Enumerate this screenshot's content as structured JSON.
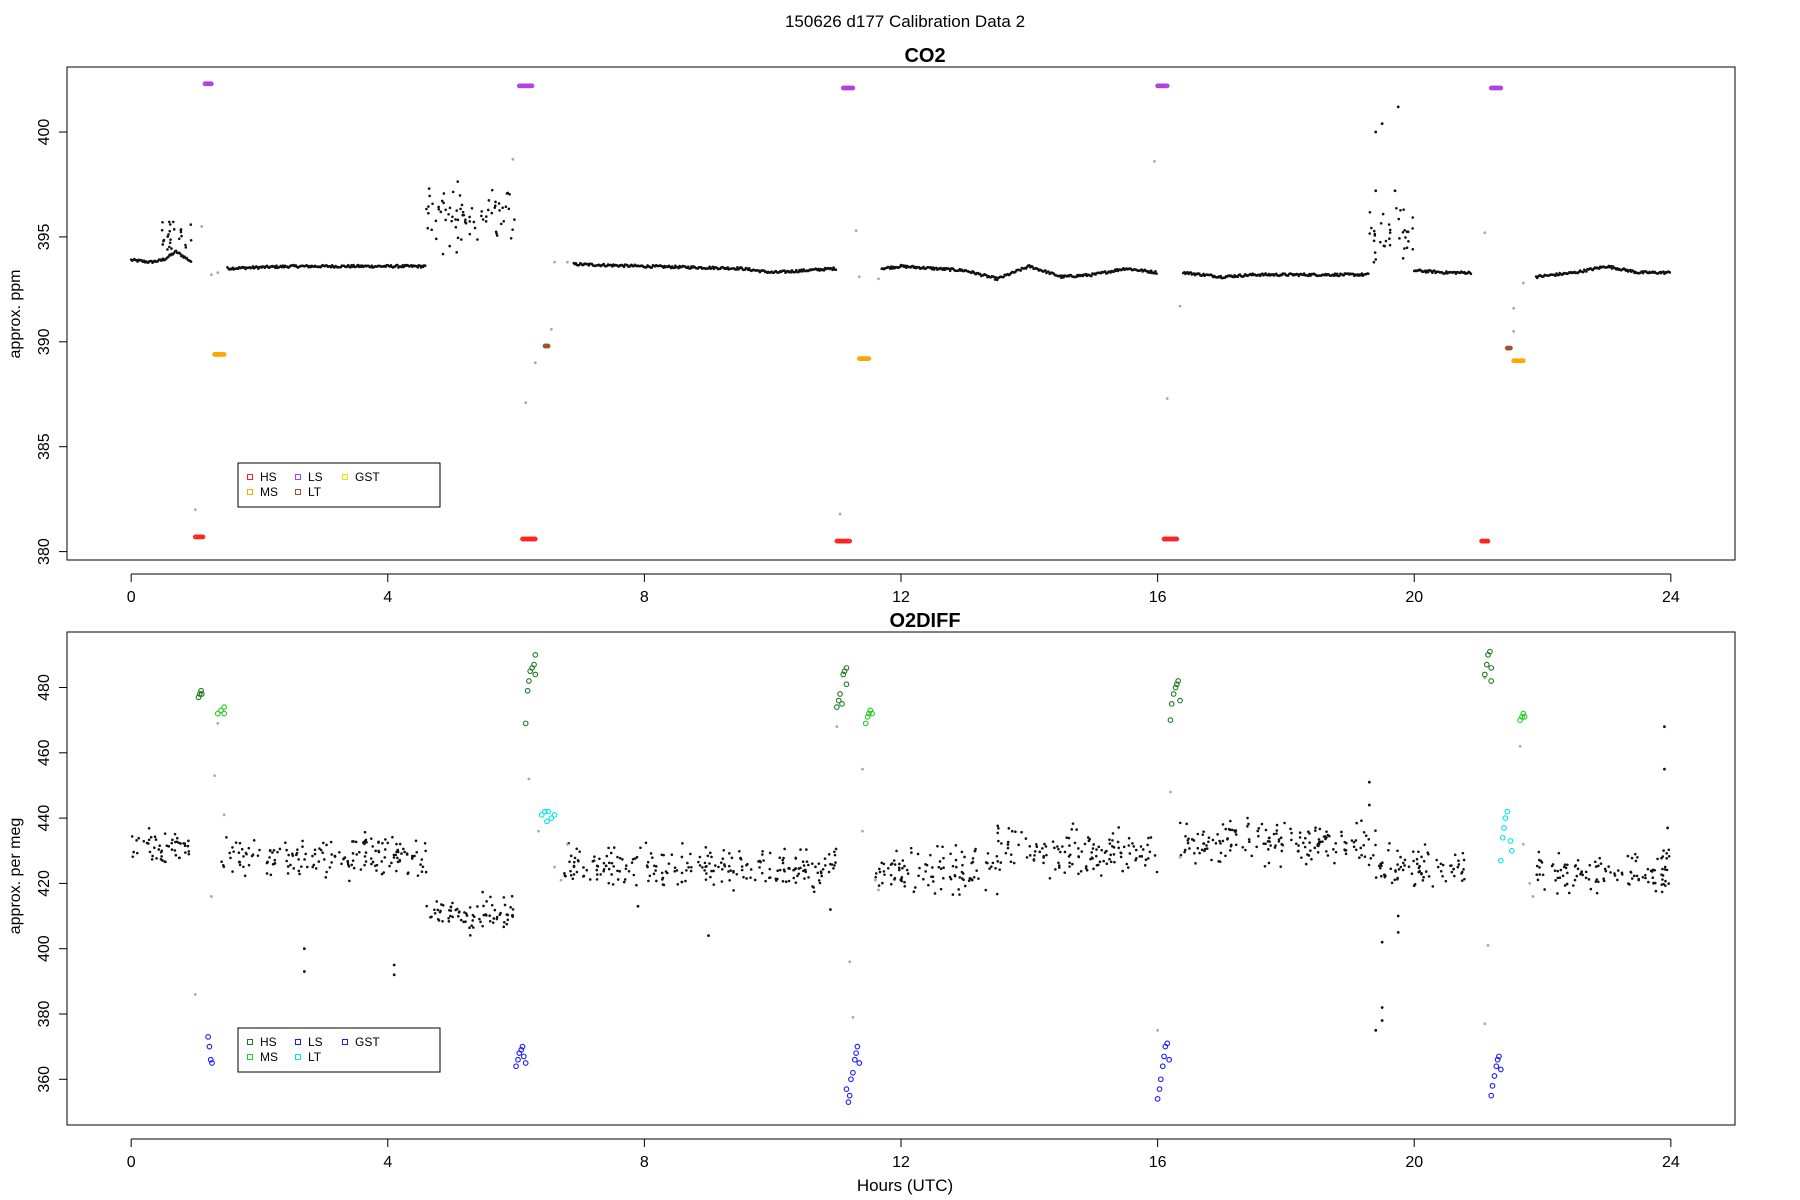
{
  "figure": {
    "title": "150626   d177   Calibration Data 2"
  },
  "legend_markers": {
    "HS": {
      "co2": "#ff2020",
      "o2": "#1f7a1f"
    },
    "MS": {
      "co2": "#ffa500",
      "o2": "#22cc22"
    },
    "LS": {
      "co2": "#b040e0",
      "o2": "#1a1aff"
    },
    "LT": {
      "co2": "#a0522d",
      "o2": "#00e5ee"
    },
    "GST": {
      "co2": "#e6e600",
      "o2": "#1a1aff"
    }
  },
  "chart_data": [
    {
      "type": "scatter",
      "title": "CO2",
      "xlabel": "",
      "ylabel": "approx. ppm",
      "xlim": [
        -1,
        25
      ],
      "ylim": [
        379.6,
        403.1
      ],
      "xticks": [
        0,
        4,
        8,
        12,
        16,
        20,
        24
      ],
      "yticks": [
        380,
        385,
        390,
        395,
        400
      ],
      "legend": {
        "placement": "lower-left",
        "columns": [
          [
            "HS",
            "MS"
          ],
          [
            "LS",
            "LT"
          ],
          [
            "GST"
          ]
        ]
      },
      "ambient_segments": [
        [
          [
            0.0,
            393.9
          ],
          [
            0.3,
            393.8
          ],
          [
            0.5,
            393.9
          ],
          [
            0.7,
            394.3
          ],
          [
            0.95,
            393.8
          ]
        ],
        [
          [
            1.5,
            393.5
          ],
          [
            2.5,
            393.6
          ],
          [
            3.5,
            393.6
          ],
          [
            4.6,
            393.6
          ]
        ],
        [
          [
            6.9,
            393.7
          ],
          [
            8.0,
            393.6
          ],
          [
            9.5,
            393.5
          ],
          [
            10.0,
            393.3
          ],
          [
            10.5,
            393.4
          ],
          [
            11.0,
            393.5
          ]
        ],
        [
          [
            11.7,
            393.5
          ],
          [
            12.0,
            393.6
          ],
          [
            12.5,
            393.5
          ],
          [
            13.0,
            393.4
          ],
          [
            13.5,
            393.0
          ],
          [
            14.0,
            393.6
          ],
          [
            14.5,
            393.1
          ],
          [
            15.0,
            393.2
          ],
          [
            15.5,
            393.5
          ],
          [
            16.0,
            393.3
          ]
        ],
        [
          [
            16.4,
            393.3
          ],
          [
            17.0,
            393.1
          ],
          [
            17.5,
            393.2
          ],
          [
            18.5,
            393.2
          ],
          [
            19.3,
            393.2
          ]
        ],
        [
          [
            20.0,
            393.4
          ],
          [
            20.5,
            393.3
          ],
          [
            20.9,
            393.3
          ]
        ],
        [
          [
            21.9,
            393.1
          ],
          [
            22.5,
            393.3
          ],
          [
            23.0,
            393.6
          ],
          [
            23.5,
            393.3
          ],
          [
            24.0,
            393.3
          ]
        ]
      ],
      "scatter_clouds": [
        {
          "x0": 0.45,
          "x1": 0.95,
          "ymin": 393.8,
          "ymax": 396.2
        },
        {
          "x0": 4.6,
          "x1": 6.0,
          "ymin": 394.0,
          "ymax": 398.0
        },
        {
          "x0": 19.3,
          "x1": 20.0,
          "ymin": 393.2,
          "ymax": 397.2
        }
      ],
      "outliers": [
        [
          19.4,
          400.0
        ],
        [
          19.5,
          400.4
        ],
        [
          19.75,
          401.2
        ],
        [
          19.4,
          397.2
        ],
        [
          19.7,
          397.2
        ]
      ],
      "flush_points": [
        [
          1.0,
          382.0
        ],
        [
          1.1,
          395.5
        ],
        [
          1.25,
          393.2
        ],
        [
          1.35,
          393.3
        ],
        [
          5.95,
          398.7
        ],
        [
          6.15,
          387.1
        ],
        [
          6.3,
          389.0
        ],
        [
          6.55,
          390.6
        ],
        [
          6.6,
          393.8
        ],
        [
          6.8,
          393.8
        ],
        [
          11.05,
          381.8
        ],
        [
          11.3,
          395.3
        ],
        [
          11.35,
          393.1
        ],
        [
          11.65,
          393.0
        ],
        [
          15.95,
          398.6
        ],
        [
          16.15,
          387.3
        ],
        [
          16.35,
          391.7
        ],
        [
          21.1,
          395.2
        ],
        [
          21.55,
          391.6
        ],
        [
          21.55,
          390.5
        ],
        [
          21.7,
          392.8
        ]
      ],
      "standards": [
        {
          "name": "HS",
          "x0": 1.0,
          "x1": 1.12,
          "y": 380.7
        },
        {
          "name": "HS",
          "x0": 6.1,
          "x1": 6.3,
          "y": 380.6
        },
        {
          "name": "HS",
          "x0": 11.0,
          "x1": 11.2,
          "y": 380.5
        },
        {
          "name": "HS",
          "x0": 16.1,
          "x1": 16.3,
          "y": 380.6
        },
        {
          "name": "HS",
          "x0": 21.05,
          "x1": 21.15,
          "y": 380.5
        },
        {
          "name": "LS",
          "x0": 1.15,
          "x1": 1.25,
          "y": 402.3
        },
        {
          "name": "LS",
          "x0": 6.05,
          "x1": 6.25,
          "y": 402.2
        },
        {
          "name": "LS",
          "x0": 11.1,
          "x1": 11.25,
          "y": 402.1
        },
        {
          "name": "LS",
          "x0": 16.0,
          "x1": 16.15,
          "y": 402.2
        },
        {
          "name": "LS",
          "x0": 21.2,
          "x1": 21.35,
          "y": 402.1
        },
        {
          "name": "MS",
          "x0": 1.3,
          "x1": 1.45,
          "y": 389.4
        },
        {
          "name": "MS",
          "x0": 11.35,
          "x1": 11.5,
          "y": 389.2
        },
        {
          "name": "MS",
          "x0": 21.55,
          "x1": 21.7,
          "y": 389.1
        },
        {
          "name": "LT",
          "x0": 6.45,
          "x1": 6.5,
          "y": 389.8
        },
        {
          "name": "LT",
          "x0": 21.45,
          "x1": 21.5,
          "y": 389.7
        }
      ]
    },
    {
      "type": "scatter",
      "title": "O2DIFF",
      "xlabel": "Hours (UTC)",
      "ylabel": "approx. per meg",
      "xlim": [
        -1,
        25
      ],
      "ylim": [
        346,
        497
      ],
      "xticks": [
        0,
        4,
        8,
        12,
        16,
        20,
        24
      ],
      "yticks": [
        360,
        380,
        400,
        420,
        440,
        460,
        480
      ],
      "legend": {
        "placement": "lower-left",
        "columns": [
          [
            "HS",
            "MS"
          ],
          [
            "LS",
            "LT"
          ],
          [
            "GST"
          ]
        ]
      },
      "scatter_clouds": [
        {
          "x0": 0.0,
          "x1": 0.95,
          "ymin": 424,
          "ymax": 438
        },
        {
          "x0": 1.4,
          "x1": 4.6,
          "ymin": 419,
          "ymax": 437
        },
        {
          "x0": 4.6,
          "x1": 6.0,
          "ymin": 402,
          "ymax": 419
        },
        {
          "x0": 6.7,
          "x1": 11.0,
          "ymin": 416,
          "ymax": 434
        },
        {
          "x0": 11.6,
          "x1": 13.5,
          "ymin": 414,
          "ymax": 434
        },
        {
          "x0": 13.5,
          "x1": 16.0,
          "ymin": 420,
          "ymax": 440
        },
        {
          "x0": 16.35,
          "x1": 19.4,
          "ymin": 423,
          "ymax": 442
        },
        {
          "x0": 19.4,
          "x1": 20.8,
          "ymin": 416,
          "ymax": 434
        },
        {
          "x0": 21.9,
          "x1": 24.0,
          "ymin": 415,
          "ymax": 432
        }
      ],
      "outliers": [
        [
          2.7,
          400
        ],
        [
          2.7,
          393
        ],
        [
          4.1,
          395
        ],
        [
          4.1,
          392
        ],
        [
          19.3,
          451
        ],
        [
          19.3,
          444
        ],
        [
          19.5,
          378
        ],
        [
          19.5,
          382
        ],
        [
          19.4,
          375
        ],
        [
          19.5,
          402
        ],
        [
          19.75,
          405
        ],
        [
          19.75,
          410
        ],
        [
          23.9,
          468
        ],
        [
          23.9,
          455
        ],
        [
          23.95,
          437
        ],
        [
          7.9,
          413
        ],
        [
          9.0,
          404
        ],
        [
          10.9,
          412
        ]
      ],
      "flush_points": [
        [
          1.0,
          386
        ],
        [
          1.25,
          416
        ],
        [
          1.3,
          453
        ],
        [
          1.35,
          469
        ],
        [
          1.45,
          441
        ],
        [
          6.2,
          452
        ],
        [
          6.35,
          436
        ],
        [
          6.6,
          425
        ],
        [
          6.7,
          421
        ],
        [
          6.8,
          432
        ],
        [
          11.0,
          468
        ],
        [
          11.2,
          396
        ],
        [
          11.25,
          379
        ],
        [
          11.4,
          455
        ],
        [
          11.4,
          436
        ],
        [
          11.6,
          421
        ],
        [
          11.65,
          418
        ],
        [
          16.0,
          375
        ],
        [
          16.2,
          448
        ],
        [
          16.35,
          428
        ],
        [
          21.1,
          483
        ],
        [
          21.1,
          377
        ],
        [
          21.15,
          401
        ],
        [
          21.65,
          462
        ],
        [
          21.7,
          432
        ],
        [
          21.8,
          420
        ],
        [
          21.85,
          416
        ]
      ],
      "standards": [
        {
          "name": "HS",
          "points": [
            [
              1.05,
              477
            ],
            [
              1.07,
              478
            ],
            [
              1.09,
              479
            ],
            [
              1.1,
              478
            ]
          ]
        },
        {
          "name": "HS",
          "points": [
            [
              6.15,
              469
            ],
            [
              6.18,
              479
            ],
            [
              6.2,
              482
            ],
            [
              6.22,
              485
            ],
            [
              6.25,
              486
            ],
            [
              6.28,
              487
            ],
            [
              6.3,
              490
            ],
            [
              6.3,
              484
            ]
          ]
        },
        {
          "name": "HS",
          "points": [
            [
              11.0,
              474
            ],
            [
              11.03,
              476
            ],
            [
              11.05,
              478
            ],
            [
              11.08,
              475
            ],
            [
              11.1,
              484
            ],
            [
              11.12,
              485
            ],
            [
              11.15,
              486
            ],
            [
              11.15,
              481
            ]
          ]
        },
        {
          "name": "HS",
          "points": [
            [
              16.2,
              470
            ],
            [
              16.22,
              475
            ],
            [
              16.25,
              478
            ],
            [
              16.28,
              480
            ],
            [
              16.3,
              481
            ],
            [
              16.32,
              482
            ],
            [
              16.35,
              476
            ]
          ]
        },
        {
          "name": "HS",
          "points": [
            [
              21.1,
              484
            ],
            [
              21.13,
              487
            ],
            [
              21.15,
              490
            ],
            [
              21.18,
              491
            ],
            [
              21.2,
              486
            ],
            [
              21.2,
              482
            ]
          ]
        },
        {
          "name": "MS",
          "points": [
            [
              1.35,
              472
            ],
            [
              1.4,
              473
            ],
            [
              1.45,
              472
            ],
            [
              1.45,
              474
            ]
          ]
        },
        {
          "name": "MS",
          "points": [
            [
              11.45,
              469
            ],
            [
              11.48,
              471
            ],
            [
              11.5,
              472
            ],
            [
              11.52,
              473
            ],
            [
              11.55,
              472
            ]
          ]
        },
        {
          "name": "MS",
          "points": [
            [
              21.65,
              470
            ],
            [
              21.68,
              471
            ],
            [
              21.7,
              472
            ],
            [
              21.72,
              471
            ]
          ]
        },
        {
          "name": "LS",
          "points": [
            [
              1.2,
              373
            ],
            [
              1.22,
              370
            ],
            [
              1.24,
              366
            ],
            [
              1.26,
              365
            ]
          ]
        },
        {
          "name": "LS",
          "points": [
            [
              6.0,
              364
            ],
            [
              6.03,
              366
            ],
            [
              6.05,
              368
            ],
            [
              6.08,
              369
            ],
            [
              6.1,
              370
            ],
            [
              6.12,
              367
            ],
            [
              6.15,
              365
            ]
          ]
        },
        {
          "name": "LS",
          "points": [
            [
              11.15,
              357
            ],
            [
              11.18,
              353
            ],
            [
              11.2,
              355
            ],
            [
              11.22,
              360
            ],
            [
              11.25,
              362
            ],
            [
              11.28,
              366
            ],
            [
              11.3,
              368
            ],
            [
              11.32,
              370
            ],
            [
              11.35,
              365
            ]
          ]
        },
        {
          "name": "LS",
          "points": [
            [
              16.0,
              354
            ],
            [
              16.03,
              357
            ],
            [
              16.05,
              360
            ],
            [
              16.08,
              364
            ],
            [
              16.1,
              367
            ],
            [
              16.12,
              370
            ],
            [
              16.15,
              371
            ],
            [
              16.18,
              366
            ]
          ]
        },
        {
          "name": "LS",
          "points": [
            [
              21.2,
              355
            ],
            [
              21.22,
              358
            ],
            [
              21.25,
              361
            ],
            [
              21.28,
              364
            ],
            [
              21.3,
              366
            ],
            [
              21.32,
              367
            ],
            [
              21.35,
              363
            ]
          ]
        },
        {
          "name": "LT",
          "points": [
            [
              6.4,
              441
            ],
            [
              6.45,
              442
            ],
            [
              6.5,
              442
            ],
            [
              6.55,
              440
            ],
            [
              6.6,
              441
            ],
            [
              6.48,
              439
            ]
          ]
        },
        {
          "name": "LT",
          "points": [
            [
              21.35,
              427
            ],
            [
              21.38,
              434
            ],
            [
              21.4,
              437
            ],
            [
              21.42,
              440
            ],
            [
              21.45,
              442
            ],
            [
              21.5,
              433
            ],
            [
              21.52,
              430
            ]
          ]
        }
      ]
    }
  ]
}
